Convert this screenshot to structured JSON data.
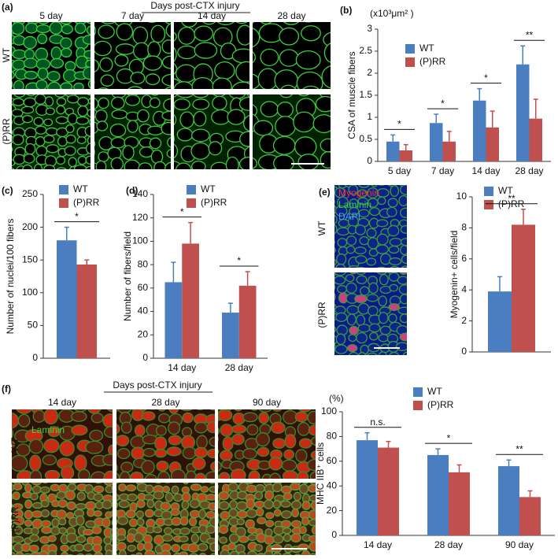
{
  "chart_data": [
    {
      "type": "bar",
      "panel": "(b)",
      "y_label": "CSA of muscle fibers",
      "unit_label": "(x10³μm² )",
      "categories": [
        "5 day",
        "7 day",
        "14 day",
        "28 day"
      ],
      "series": [
        {
          "name": "WT",
          "color": "#4a7ec0",
          "values": [
            0.45,
            0.87,
            1.38,
            2.2
          ],
          "errors": [
            0.15,
            0.2,
            0.27,
            0.42
          ]
        },
        {
          "name": "(P)RR",
          "color": "#c0504d",
          "values": [
            0.25,
            0.45,
            0.77,
            0.97
          ],
          "errors": [
            0.13,
            0.23,
            0.37,
            0.44
          ]
        }
      ],
      "significance": [
        "*",
        "*",
        "*",
        "**"
      ],
      "ylim": [
        0,
        3
      ],
      "yticks": [
        0,
        0.5,
        1,
        1.5,
        2,
        2.5,
        3
      ]
    },
    {
      "type": "bar",
      "panel": "(c)",
      "y_label": "Number of nuclei/100 fibers",
      "categories": [
        null
      ],
      "series": [
        {
          "name": "WT",
          "color": "#4a7ec0",
          "values": [
            180
          ],
          "errors": [
            20
          ]
        },
        {
          "name": "(P)RR",
          "color": "#c0504d",
          "values": [
            143
          ],
          "errors": [
            7
          ]
        }
      ],
      "significance": [
        "*"
      ],
      "ylim": [
        0,
        250
      ],
      "yticks": [
        0,
        50,
        100,
        150,
        200,
        250
      ]
    },
    {
      "type": "bar",
      "panel": "(d)",
      "y_label": "Number of fibers/field",
      "categories": [
        "14 day",
        "28 day"
      ],
      "series": [
        {
          "name": "WT",
          "color": "#4a7ec0",
          "values": [
            65,
            39
          ],
          "errors": [
            17,
            8
          ]
        },
        {
          "name": "(P)RR",
          "color": "#c0504d",
          "values": [
            98,
            62
          ],
          "errors": [
            18,
            12
          ]
        }
      ],
      "significance": [
        "*",
        "*"
      ],
      "ylim": [
        0,
        140
      ],
      "yticks": [
        0,
        20,
        40,
        60,
        80,
        100,
        120,
        140
      ]
    },
    {
      "type": "bar",
      "y_label": "Myogenin+ cells/field",
      "categories": [
        null
      ],
      "series": [
        {
          "name": "WT",
          "color": "#4a7ec0",
          "values": [
            3.9
          ],
          "errors": [
            0.95
          ]
        },
        {
          "name": "(P)RR",
          "color": "#c0504d",
          "values": [
            8.2
          ],
          "errors": [
            1.0
          ]
        }
      ],
      "significance": [
        "**"
      ],
      "ylim": [
        0,
        10
      ],
      "yticks": [
        0,
        2,
        4,
        6,
        8,
        10
      ]
    },
    {
      "type": "bar",
      "y_label": "MHC IIB⁺ cells",
      "unit_label": "(%)",
      "categories": [
        "14 day",
        "28 day",
        "90 day"
      ],
      "series": [
        {
          "name": "WT",
          "color": "#4a7ec0",
          "values": [
            77,
            65,
            56
          ],
          "errors": [
            6,
            5,
            5
          ]
        },
        {
          "name": "(P)RR",
          "color": "#c0504d",
          "values": [
            71,
            51,
            31
          ],
          "errors": [
            5,
            6,
            5
          ]
        }
      ],
      "significance": [
        "n.s.",
        "*",
        "**"
      ],
      "ylim": [
        0,
        100
      ],
      "yticks": [
        0,
        20,
        40,
        60,
        80,
        100
      ]
    }
  ],
  "image_panels": [
    {
      "panel": "(a)",
      "title": "Days post-CTX injury",
      "columns": [
        "5 day",
        "7 day",
        "14 day",
        "28 day"
      ],
      "rows": [
        "WT",
        "(P)RR"
      ]
    },
    {
      "panel": "(e)",
      "stains": [
        "Myogenin",
        "Laminin",
        "DAPI"
      ],
      "rows": [
        "WT",
        "(P)RR"
      ]
    },
    {
      "panel": "(f)",
      "title": "Days post-CTX injury",
      "columns": [
        "14 day",
        "28 day",
        "90 day"
      ],
      "stains": [
        "Laminin"
      ],
      "rows": [
        "WT",
        "(P)RR"
      ]
    }
  ]
}
